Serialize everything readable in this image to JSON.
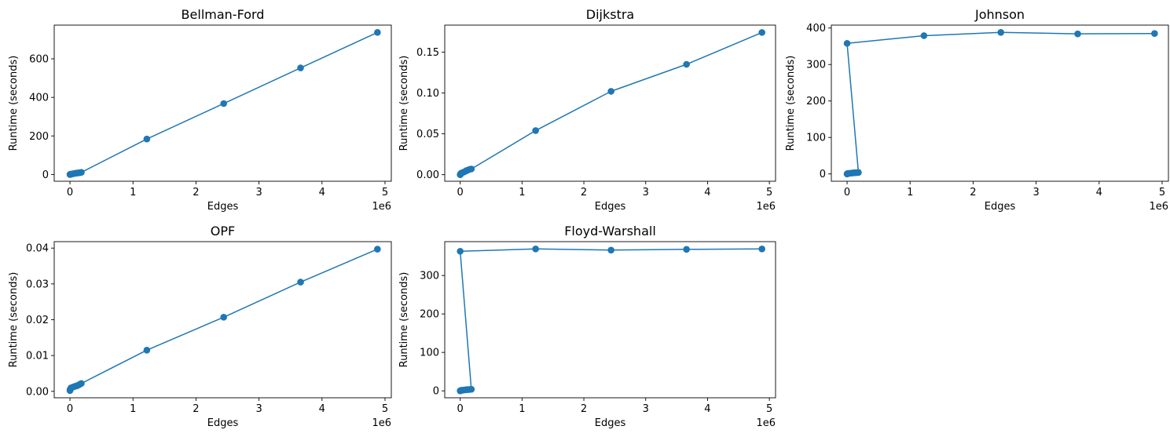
{
  "chart_data": [
    {
      "type": "line",
      "title": "Bellman-Ford",
      "xlabel": "Edges",
      "ylabel": "Runtime (seconds)",
      "x_offset_label": "1e6",
      "xlim": [
        -0.25,
        5.1
      ],
      "ylim": [
        -35,
        775
      ],
      "xticks": [
        0,
        1,
        2,
        3,
        4,
        5
      ],
      "xtick_labels": [
        "0",
        "1",
        "2",
        "3",
        "4",
        "5"
      ],
      "yticks": [
        0,
        200,
        400,
        600
      ],
      "ytick_labels": [
        "0",
        "200",
        "400",
        "600"
      ],
      "color": "#1f77b4",
      "x": [
        0,
        0.002,
        0.005,
        0.012,
        0.02,
        0.05,
        0.08,
        0.1,
        0.12,
        0.15,
        0.18,
        1.22,
        2.44,
        3.66,
        4.88
      ],
      "y": [
        0,
        0.3,
        0.7,
        1.5,
        2,
        4,
        6,
        7,
        8,
        9,
        11,
        184,
        368,
        553,
        737
      ]
    },
    {
      "type": "line",
      "title": "Dijkstra",
      "xlabel": "Edges",
      "ylabel": "Runtime (seconds)",
      "x_offset_label": "1e6",
      "xlim": [
        -0.25,
        5.1
      ],
      "ylim": [
        -0.008,
        0.183
      ],
      "xticks": [
        0,
        1,
        2,
        3,
        4,
        5
      ],
      "xtick_labels": [
        "0",
        "1",
        "2",
        "3",
        "4",
        "5"
      ],
      "yticks": [
        0,
        0.05,
        0.1,
        0.15
      ],
      "ytick_labels": [
        "0.00",
        "0.05",
        "0.10",
        "0.15"
      ],
      "color": "#1f77b4",
      "x": [
        0,
        0.002,
        0.005,
        0.012,
        0.02,
        0.05,
        0.08,
        0.1,
        0.12,
        0.15,
        0.18,
        1.22,
        2.44,
        3.66,
        4.88
      ],
      "y": [
        0,
        0.0004,
        0.0008,
        0.0015,
        0.002,
        0.003,
        0.004,
        0.005,
        0.0055,
        0.0065,
        0.007,
        0.054,
        0.102,
        0.135,
        0.174
      ]
    },
    {
      "type": "line",
      "title": "Johnson",
      "xlabel": "Edges",
      "ylabel": "Runtime (seconds)",
      "x_offset_label": "1e6",
      "xlim": [
        -0.25,
        5.1
      ],
      "ylim": [
        -20,
        408
      ],
      "xticks": [
        0,
        1,
        2,
        3,
        4,
        5
      ],
      "xtick_labels": [
        "0",
        "1",
        "2",
        "3",
        "4",
        "5"
      ],
      "yticks": [
        0,
        100,
        200,
        300,
        400
      ],
      "ytick_labels": [
        "0",
        "100",
        "200",
        "300",
        "400"
      ],
      "color": "#1f77b4",
      "x": [
        0,
        0.002,
        0.005,
        0.012,
        0.02,
        0.05,
        0.08,
        0.1,
        0.12,
        0.15,
        0.18,
        0,
        1.22,
        2.44,
        3.66,
        4.88
      ],
      "y": [
        0,
        0.3,
        0.6,
        1,
        1.5,
        2,
        2.5,
        3,
        3.2,
        3.5,
        4,
        358,
        379,
        388,
        384,
        385
      ]
    },
    {
      "type": "line",
      "title": "OPF",
      "xlabel": "Edges",
      "ylabel": "Runtime (seconds)",
      "x_offset_label": "1e6",
      "xlim": [
        -0.25,
        5.1
      ],
      "ylim": [
        -0.0018,
        0.0418
      ],
      "xticks": [
        0,
        1,
        2,
        3,
        4,
        5
      ],
      "xtick_labels": [
        "0",
        "1",
        "2",
        "3",
        "4",
        "5"
      ],
      "yticks": [
        0,
        0.01,
        0.02,
        0.03,
        0.04
      ],
      "ytick_labels": [
        "0.00",
        "0.01",
        "0.02",
        "0.03",
        "0.04"
      ],
      "color": "#1f77b4",
      "x": [
        0,
        0.002,
        0.005,
        0.012,
        0.02,
        0.05,
        0.08,
        0.1,
        0.12,
        0.15,
        0.18,
        1.22,
        2.44,
        3.66,
        4.88
      ],
      "y": [
        0.0002,
        0.0004,
        0.0006,
        0.0008,
        0.001,
        0.0012,
        0.0014,
        0.0015,
        0.0016,
        0.0019,
        0.0022,
        0.0115,
        0.0207,
        0.0305,
        0.0397
      ]
    },
    {
      "type": "line",
      "title": "Floyd-Warshall",
      "xlabel": "Edges",
      "ylabel": "Runtime (seconds)",
      "x_offset_label": "1e6",
      "xlim": [
        -0.25,
        5.1
      ],
      "ylim": [
        -18,
        388
      ],
      "xticks": [
        0,
        1,
        2,
        3,
        4,
        5
      ],
      "xtick_labels": [
        "0",
        "1",
        "2",
        "3",
        "4",
        "5"
      ],
      "yticks": [
        0,
        100,
        200,
        300
      ],
      "ytick_labels": [
        "0",
        "100",
        "200",
        "300"
      ],
      "color": "#1f77b4",
      "x": [
        0,
        0.002,
        0.005,
        0.012,
        0.02,
        0.05,
        0.08,
        0.1,
        0.12,
        0.15,
        0.18,
        0,
        1.22,
        2.44,
        3.66,
        4.88
      ],
      "y": [
        0,
        0.3,
        0.6,
        1,
        1.5,
        2,
        2.5,
        3,
        3.2,
        3.5,
        4,
        363,
        369,
        366,
        368,
        369
      ]
    }
  ]
}
